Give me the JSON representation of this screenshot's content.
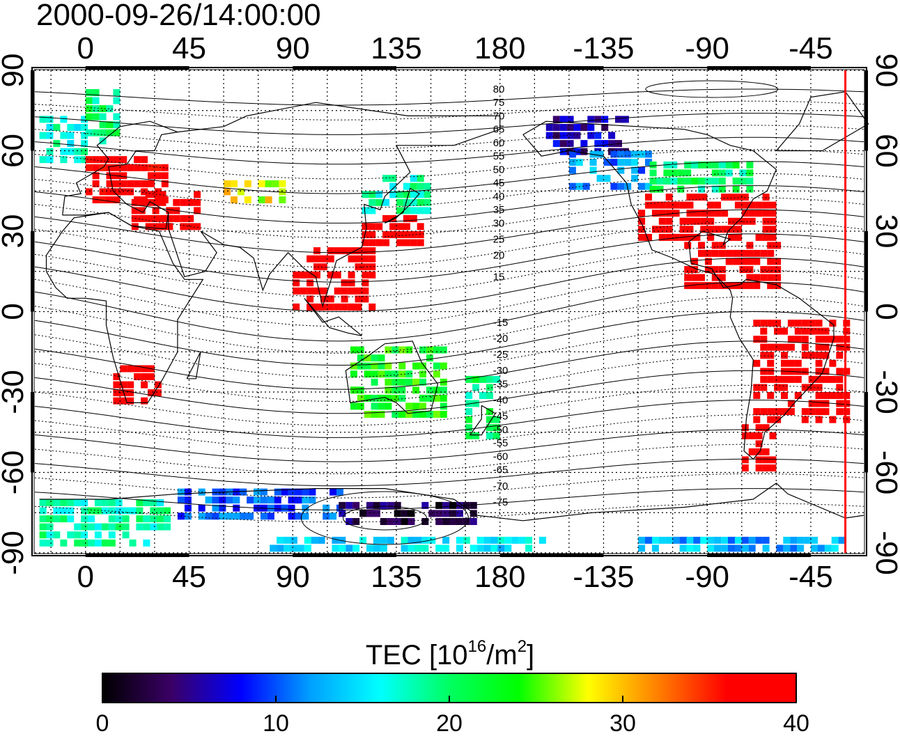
{
  "title": "2000-09-26/14:00:00",
  "map": {
    "lon_ticks_top": [
      "0",
      "45",
      "90",
      "135",
      "180",
      "-135",
      "-90",
      "-45"
    ],
    "lon_ticks_bottom": [
      "0",
      "45",
      "90",
      "135",
      "180",
      "-135",
      "-90",
      "-45"
    ],
    "lat_ticks_left": [
      "90",
      "60",
      "30",
      "0",
      "-30",
      "-60",
      "-90"
    ],
    "lat_ticks_right": [
      "90",
      "60",
      "30",
      "0",
      "-30",
      "-60",
      "-90"
    ],
    "lon_tick_values": [
      0,
      45,
      90,
      135,
      180,
      225,
      270,
      315
    ],
    "lat_tick_values": [
      90,
      60,
      30,
      0,
      -30,
      -60,
      -90
    ],
    "lon_range": [
      -22,
      338
    ],
    "lat_range": [
      -90,
      90
    ],
    "terminator_lon": 330,
    "contour_labels_north": [
      "80",
      "75",
      "70",
      "65",
      "60",
      "55",
      "50",
      "45",
      "40",
      "35",
      "30",
      "25",
      "20",
      "15"
    ],
    "contour_labels_south": [
      "-15",
      "-20",
      "-25",
      "-30",
      "-35",
      "-40",
      "-45",
      "-50",
      "-55",
      "-60",
      "-65",
      "-70",
      "-75"
    ],
    "contour_label_lon": 180,
    "contour_label_lat_north": [
      83,
      78,
      73,
      68,
      63,
      58,
      53,
      48,
      43,
      38,
      33,
      27,
      21,
      13
    ],
    "contour_label_lat_south": [
      -4,
      -10,
      -16,
      -22,
      -27,
      -33,
      -39,
      -44,
      -49,
      -54,
      -59,
      -65,
      -71
    ],
    "grid": true
  },
  "colorbar": {
    "label_main": "TEC  [10",
    "label_sup1": "16",
    "label_mid": "/m",
    "label_sup2": "2",
    "label_end": "]",
    "ticks": [
      "0",
      "10",
      "20",
      "30",
      "40"
    ],
    "tick_values": [
      0,
      10,
      20,
      30,
      40
    ],
    "range": [
      0,
      40
    ],
    "colors": [
      "#000000",
      "#3a0066",
      "#0000ff",
      "#00a0ff",
      "#00ffff",
      "#00ff60",
      "#00ff00",
      "#ffff00",
      "#ff8000",
      "#ff0000",
      "#ff0000"
    ]
  },
  "chart_data": {
    "type": "heatmap",
    "title": "2000-09-26/14:00:00",
    "colorbar_label": "TEC [10^16/m^2]",
    "value_range": [
      0,
      40
    ],
    "regions": [
      {
        "lon_min": -20,
        "lon_max": 0,
        "lat_min": 55,
        "lat_max": 72,
        "tec": 17
      },
      {
        "lon_min": 0,
        "lon_max": 15,
        "lat_min": 62,
        "lat_max": 82,
        "tec": 20
      },
      {
        "lon_min": 0,
        "lon_max": 35,
        "lat_min": 40,
        "lat_max": 58,
        "tec": 38
      },
      {
        "lon_min": 20,
        "lon_max": 50,
        "lat_min": 30,
        "lat_max": 45,
        "tec": 40
      },
      {
        "lon_min": 60,
        "lon_max": 85,
        "lat_min": 40,
        "lat_max": 48,
        "tec": 28
      },
      {
        "lon_min": 120,
        "lon_max": 145,
        "lat_min": 24,
        "lat_max": 34,
        "tec": 39
      },
      {
        "lon_min": 120,
        "lon_max": 150,
        "lat_min": 36,
        "lat_max": 50,
        "tec": 18
      },
      {
        "lon_min": 90,
        "lon_max": 125,
        "lat_min": 0,
        "lat_max": 22,
        "tec": 40
      },
      {
        "lon_min": 12,
        "lon_max": 32,
        "lat_min": -35,
        "lat_max": -22,
        "tec": 40
      },
      {
        "lon_min": 115,
        "lon_max": 155,
        "lat_min": -40,
        "lat_max": -15,
        "tec": 23
      },
      {
        "lon_min": 165,
        "lon_max": 180,
        "lat_min": -48,
        "lat_max": -25,
        "tec": 20
      },
      {
        "lon_min": 200,
        "lon_max": 235,
        "lat_min": 58,
        "lat_max": 72,
        "tec": 6
      },
      {
        "lon_min": 210,
        "lon_max": 245,
        "lat_min": 45,
        "lat_max": 58,
        "tec": 12
      },
      {
        "lon_min": 240,
        "lon_max": 300,
        "lat_min": 26,
        "lat_max": 44,
        "tec": 40
      },
      {
        "lon_min": 245,
        "lon_max": 290,
        "lat_min": 44,
        "lat_max": 56,
        "tec": 20
      },
      {
        "lon_min": 260,
        "lon_max": 300,
        "lat_min": 8,
        "lat_max": 25,
        "tec": 40
      },
      {
        "lon_min": 290,
        "lon_max": 330,
        "lat_min": -42,
        "lat_max": -5,
        "tec": 40
      },
      {
        "lon_min": 285,
        "lon_max": 300,
        "lat_min": -60,
        "lat_max": -42,
        "tec": 40
      },
      {
        "lon_min": -20,
        "lon_max": 35,
        "lat_min": -88,
        "lat_max": -70,
        "tec": 18
      },
      {
        "lon_min": 40,
        "lon_max": 110,
        "lat_min": -78,
        "lat_max": -66,
        "tec": 10
      },
      {
        "lon_min": 110,
        "lon_max": 170,
        "lat_min": -80,
        "lat_max": -72,
        "tec": 3
      },
      {
        "lon_min": 80,
        "lon_max": 200,
        "lat_min": -90,
        "lat_max": -85,
        "tec": 15
      },
      {
        "lon_min": 240,
        "lon_max": 330,
        "lat_min": -90,
        "lat_max": -84,
        "tec": 13
      }
    ]
  }
}
